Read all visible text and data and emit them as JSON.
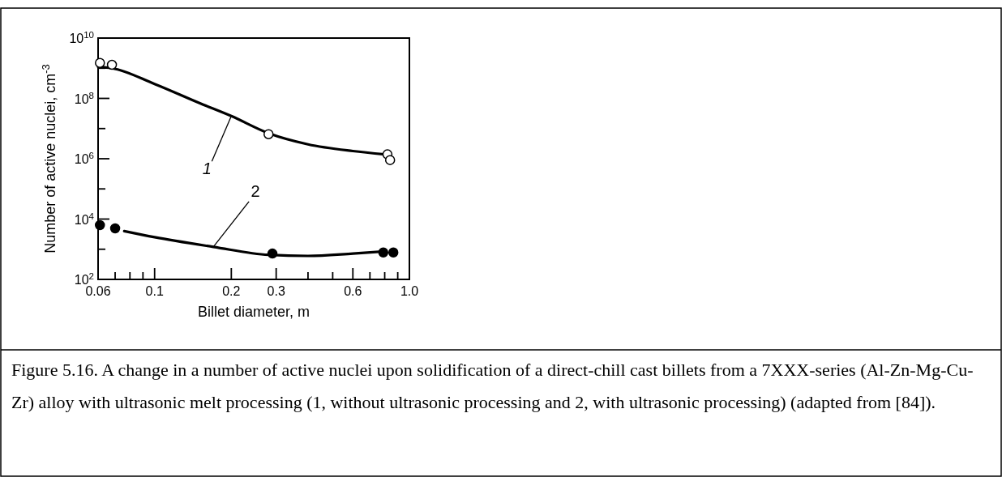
{
  "chart_data": {
    "type": "line",
    "xlabel": "Billet diameter, m",
    "ylabel": "Number of active nuclei, cm$^{-3}$",
    "log": "xy",
    "xlim": [
      0.06,
      1.0
    ],
    "xticks": [
      0.06,
      {
        "value": 0.07,
        "label": null
      },
      {
        "value": 0.08,
        "label": null
      },
      {
        "value": 0.09,
        "label": null
      },
      0.1,
      0.2,
      0.3,
      {
        "value": 0.4,
        "label": null
      },
      {
        "value": 0.5,
        "label": null
      },
      0.6,
      {
        "value": 0.7,
        "label": null
      },
      {
        "value": 0.8,
        "label": null
      },
      {
        "value": 0.9,
        "label": null
      },
      {
        "value": 1.0,
        "label": "1.0"
      }
    ],
    "ylim": [
      100,
      10000000000
    ],
    "yticks": [
      {
        "value": 100,
        "label": "10$^{2}$"
      },
      {
        "value": 1000,
        "label": null
      },
      {
        "value": 10000,
        "label": "10$^{4}$"
      },
      {
        "value": 100000,
        "label": null
      },
      {
        "value": 1000000,
        "label": "10$^{6}$"
      },
      {
        "value": 10000000,
        "label": null
      },
      {
        "value": 100000000,
        "label": "10$^{8}$"
      },
      {
        "value": 1000000000,
        "label": null
      },
      {
        "value": 10000000000,
        "label": "10$^{10}$"
      }
    ],
    "grid": false,
    "line_style": "solid",
    "series": [
      {
        "color": "#000000",
        "marker": "none",
        "x": [
          0.06,
          0.068,
          0.1,
          0.15,
          0.2,
          0.28,
          0.4,
          0.6,
          0.8
        ],
        "values": [
          1100000000,
          1000000000,
          300000000,
          70000000,
          26000000,
          7000000,
          3000000,
          1800000,
          1400000
        ]
      },
      {
        "color": "#000000",
        "marker": "none",
        "x": [
          0.076,
          0.1,
          0.17,
          0.28,
          0.4,
          0.6,
          0.8
        ],
        "values": [
          4000,
          2500,
          1200,
          650,
          600,
          720,
          850
        ]
      },
      {
        "type": "scatter",
        "color": "#ffffff",
        "marker": "circle",
        "x": [
          0.061,
          0.068,
          0.28,
          0.82,
          0.84
        ],
        "values": [
          1500000000,
          1300000000,
          6500000,
          1400000,
          900000
        ]
      },
      {
        "type": "scatter",
        "color": "#000000",
        "marker": "circle",
        "x": [
          0.061,
          0.07,
          0.29,
          0.79,
          0.865
        ],
        "values": [
          6300,
          4900,
          720,
          780,
          780
        ]
      }
    ],
    "annotations": [
      {
        "text": "1",
        "x": 0.2,
        "y": 26000000
      },
      {
        "text": "2",
        "x": 0.17,
        "y": 1200
      },
      "Figure 5.16. A change in a number of active nuclei upon solidification of a direct-chill cast billets from a 7XXX-series (Al-Zn-Mg-Cu-Zr) alloy with ultrasonic melt processing (1, without ultrasonic processing and 2, with ultrasonic processing) (adapted from [84])."
    ]
  }
}
